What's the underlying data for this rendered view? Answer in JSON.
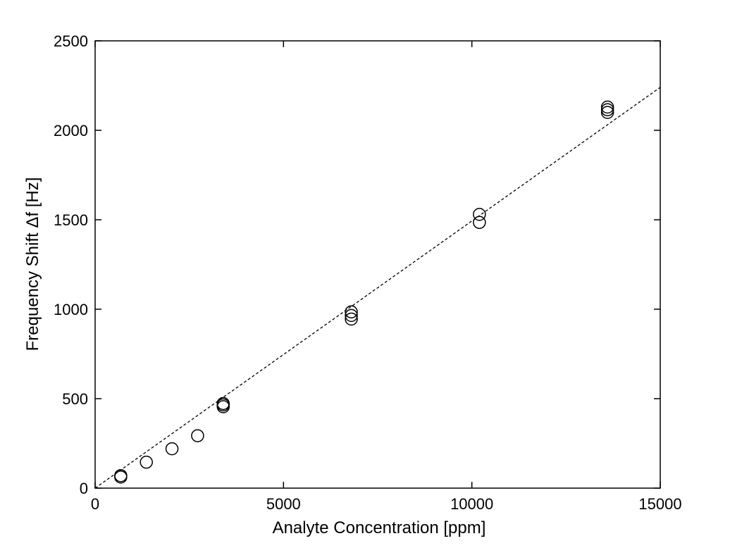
{
  "chart_data": {
    "type": "scatter",
    "title": "",
    "xlabel": "Analyte Concentration [ppm]",
    "ylabel": "Frequency Shift  Δf [Hz]",
    "xlim": [
      0,
      15000
    ],
    "ylim": [
      0,
      2500
    ],
    "xticks": [
      0,
      5000,
      10000,
      15000
    ],
    "yticks": [
      0,
      500,
      1000,
      1500,
      2000,
      2500
    ],
    "grid": false,
    "series": [
      {
        "marker": "open-circle",
        "color": "#000000",
        "points": [
          [
            680,
            70
          ],
          [
            680,
            62
          ],
          [
            1360,
            145
          ],
          [
            2040,
            220
          ],
          [
            2720,
            293
          ],
          [
            3400,
            473
          ],
          [
            3400,
            465
          ],
          [
            3400,
            455
          ],
          [
            6800,
            985
          ],
          [
            6800,
            965
          ],
          [
            6800,
            945
          ],
          [
            10200,
            1530
          ],
          [
            10200,
            1485
          ],
          [
            13600,
            2130
          ],
          [
            13600,
            2115
          ],
          [
            13600,
            2100
          ]
        ]
      },
      {
        "type": "line",
        "style": "dashed",
        "color": "#000000",
        "x": [
          0,
          15000
        ],
        "y": [
          0,
          2240
        ]
      }
    ]
  }
}
